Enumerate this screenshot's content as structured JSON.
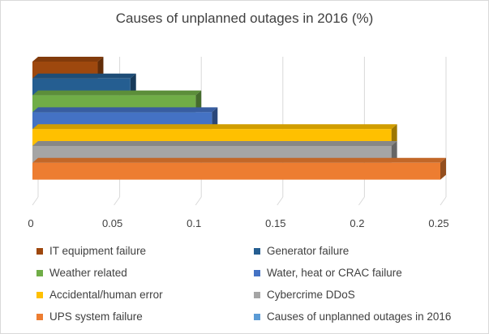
{
  "chart_data": {
    "type": "bar",
    "orientation": "horizontal",
    "style": "3d",
    "title": "Causes of unplanned outages in 2016 (%)",
    "xlabel": "",
    "ylabel": "",
    "xlim": [
      0,
      0.25
    ],
    "x_ticks": [
      "0",
      "0.05",
      "0.1",
      "0.15",
      "0.2",
      "0.25"
    ],
    "grid": "vertical",
    "legend_position": "bottom",
    "series": [
      {
        "name": "IT equipment failure",
        "value": 0.04,
        "color": "#9e480e"
      },
      {
        "name": "Generator failure",
        "value": 0.06,
        "color": "#255e91"
      },
      {
        "name": "Weather related",
        "value": 0.1,
        "color": "#70ad47"
      },
      {
        "name": "Water, heat or CRAC failure",
        "value": 0.11,
        "color": "#4472c4"
      },
      {
        "name": "Accidental/human error",
        "value": 0.22,
        "color": "#ffc000"
      },
      {
        "name": "Cybercrime DDoS",
        "value": 0.22,
        "color": "#a5a5a5"
      },
      {
        "name": "UPS system failure",
        "value": 0.25,
        "color": "#ed7d31"
      }
    ],
    "legend": [
      {
        "label": "IT equipment failure",
        "color": "#9e480e"
      },
      {
        "label": "Generator failure",
        "color": "#255e91"
      },
      {
        "label": "Weather related",
        "color": "#70ad47"
      },
      {
        "label": "Water, heat or CRAC failure",
        "color": "#4472c4"
      },
      {
        "label": "Accidental/human error",
        "color": "#ffc000"
      },
      {
        "label": "Cybercrime DDoS",
        "color": "#a5a5a5"
      },
      {
        "label": "UPS system failure",
        "color": "#ed7d31"
      },
      {
        "label": "Causes of unplanned outages in 2016",
        "color": "#5b9bd5"
      }
    ]
  }
}
